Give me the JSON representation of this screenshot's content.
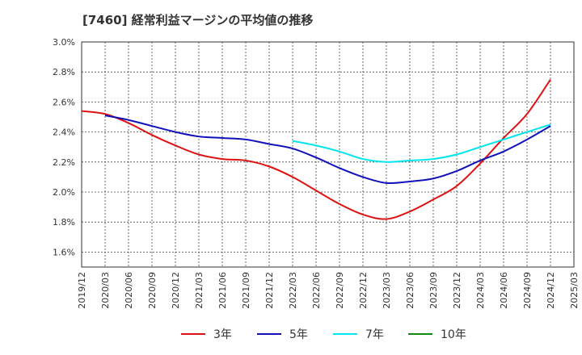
{
  "chart_data": {
    "type": "line",
    "title": "[7460]  経常利益マージンの平均値の推移",
    "xlabel": "",
    "ylabel": "",
    "ylim": [
      1.5,
      3.0
    ],
    "y_ticks": [
      "3.0%",
      "2.8%",
      "2.6%",
      "2.4%",
      "2.2%",
      "2.0%",
      "1.8%",
      "1.6%"
    ],
    "y_tick_values": [
      3.0,
      2.8,
      2.6,
      2.4,
      2.2,
      2.0,
      1.8,
      1.6
    ],
    "x_ticks": [
      "2019/12",
      "2020/03",
      "2020/06",
      "2020/09",
      "2020/12",
      "2021/03",
      "2021/06",
      "2021/09",
      "2021/12",
      "2022/03",
      "2022/06",
      "2022/09",
      "2022/12",
      "2023/03",
      "2023/06",
      "2023/09",
      "2023/12",
      "2024/03",
      "2024/06",
      "2024/09",
      "2024/12",
      "2025/03"
    ],
    "grid": true,
    "legend_position": "bottom",
    "series": [
      {
        "name": "3年",
        "color": "#dd1111",
        "x": [
          "2019/12",
          "2020/03",
          "2020/06",
          "2020/09",
          "2020/12",
          "2021/03",
          "2021/06",
          "2021/09",
          "2021/12",
          "2022/03",
          "2022/06",
          "2022/09",
          "2022/12",
          "2023/03",
          "2023/06",
          "2023/09",
          "2023/12",
          "2024/03",
          "2024/06",
          "2024/09",
          "2024/12"
        ],
        "values": [
          2.54,
          2.52,
          2.46,
          2.38,
          2.31,
          2.25,
          2.22,
          2.21,
          2.17,
          2.1,
          2.01,
          1.92,
          1.85,
          1.82,
          1.87,
          1.95,
          2.04,
          2.19,
          2.36,
          2.52,
          2.75
        ]
      },
      {
        "name": "5年",
        "color": "#1111bb",
        "x": [
          "2020/03",
          "2020/06",
          "2020/09",
          "2020/12",
          "2021/03",
          "2021/06",
          "2021/09",
          "2021/12",
          "2022/03",
          "2022/06",
          "2022/09",
          "2022/12",
          "2023/03",
          "2023/06",
          "2023/09",
          "2023/12",
          "2024/03",
          "2024/06",
          "2024/09",
          "2024/12"
        ],
        "values": [
          2.51,
          2.48,
          2.44,
          2.4,
          2.37,
          2.36,
          2.35,
          2.32,
          2.29,
          2.23,
          2.16,
          2.1,
          2.06,
          2.07,
          2.09,
          2.14,
          2.21,
          2.27,
          2.35,
          2.44
        ]
      },
      {
        "name": "7年",
        "color": "#00e5ee",
        "x": [
          "2022/03",
          "2022/06",
          "2022/09",
          "2022/12",
          "2023/03",
          "2023/06",
          "2023/09",
          "2023/12",
          "2024/03",
          "2024/06",
          "2024/09",
          "2024/12"
        ],
        "values": [
          2.34,
          2.31,
          2.27,
          2.22,
          2.2,
          2.21,
          2.22,
          2.25,
          2.3,
          2.35,
          2.4,
          2.45
        ]
      },
      {
        "name": "10年",
        "color": "#118811",
        "x": [],
        "values": []
      }
    ]
  }
}
